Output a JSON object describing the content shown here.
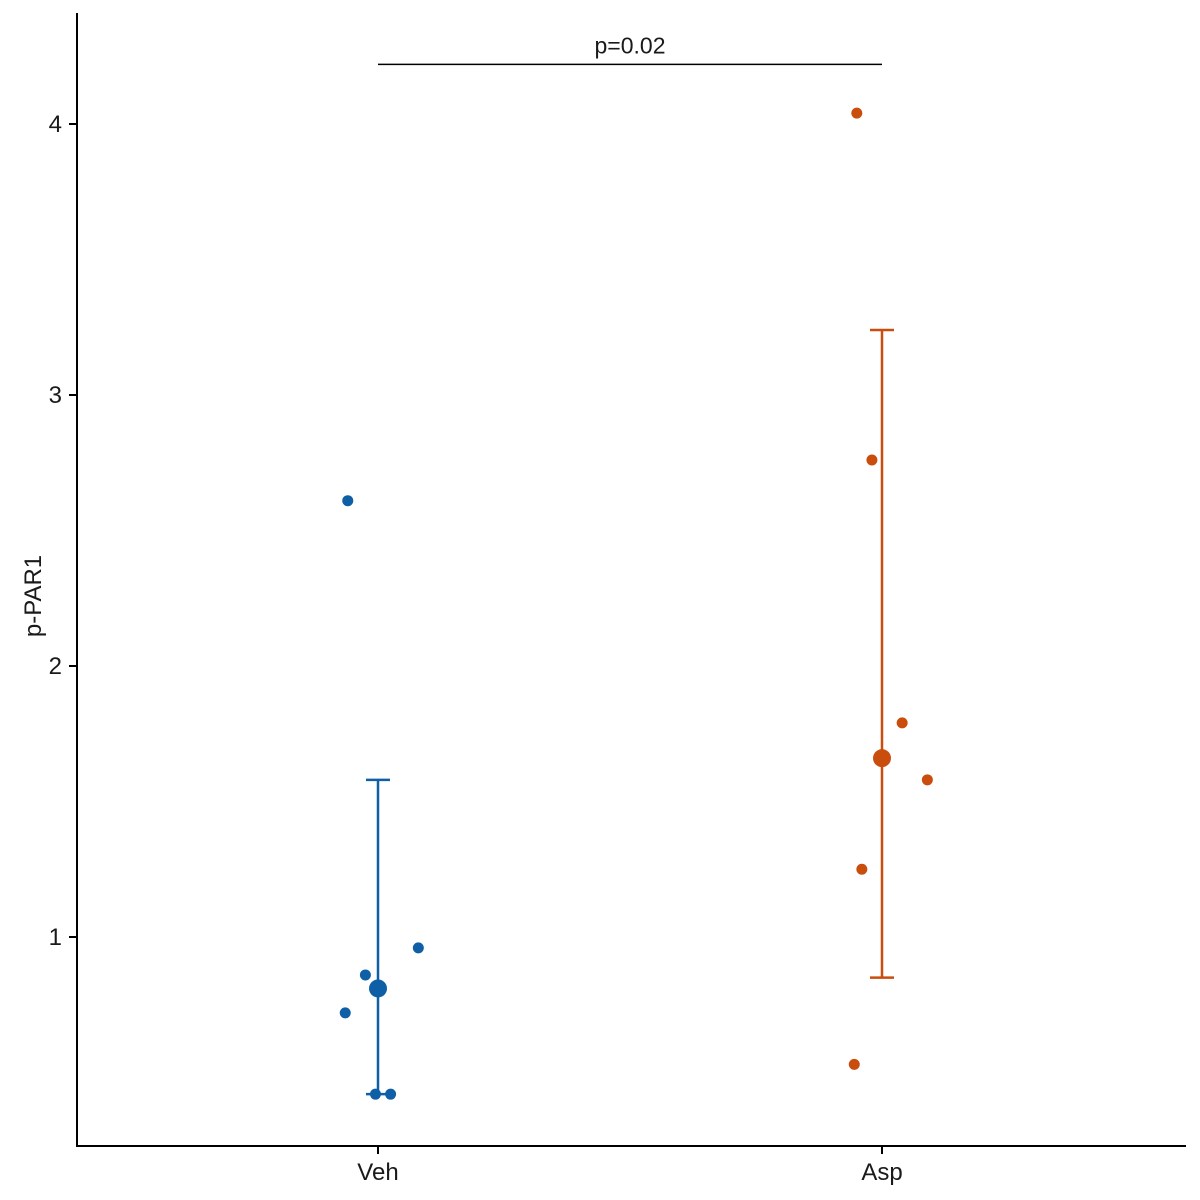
{
  "chart_data": {
    "type": "scatter",
    "ylabel": "p-PAR1",
    "xlabel": "",
    "categories": [
      "Veh",
      "Asp"
    ],
    "yticks": [
      1,
      2,
      3,
      4
    ],
    "ylim": [
      0.3,
      4.4
    ],
    "grid": false,
    "legend": "none",
    "groups": [
      {
        "category": "Veh",
        "color": "#0e5fa6",
        "points": [
          {
            "x_offset": -0.06,
            "y": 2.61
          },
          {
            "x_offset": 0.08,
            "y": 0.96
          },
          {
            "x_offset": -0.025,
            "y": 0.86
          },
          {
            "x_offset": -0.065,
            "y": 0.72
          },
          {
            "x_offset": -0.005,
            "y": 0.42
          },
          {
            "x_offset": 0.025,
            "y": 0.42
          }
        ],
        "mean": 0.81,
        "error_low": 0.42,
        "error_high": 1.58
      },
      {
        "category": "Asp",
        "color": "#c94e0e",
        "points": [
          {
            "x_offset": -0.05,
            "y": 4.04
          },
          {
            "x_offset": -0.02,
            "y": 2.76
          },
          {
            "x_offset": 0.04,
            "y": 1.79
          },
          {
            "x_offset": 0.09,
            "y": 1.58
          },
          {
            "x_offset": -0.04,
            "y": 1.25
          },
          {
            "x_offset": -0.055,
            "y": 0.53
          }
        ],
        "mean": 1.66,
        "error_low": 0.85,
        "error_high": 3.24
      }
    ],
    "annotations": [
      {
        "text": "p=0.02",
        "from": "Veh",
        "to": "Asp",
        "y": 4.22
      }
    ]
  }
}
